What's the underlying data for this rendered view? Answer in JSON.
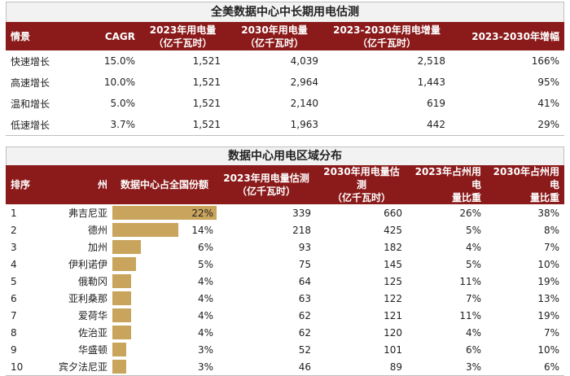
{
  "table1": {
    "title": "全美数据中心中长期用电估测",
    "headers": [
      "情景",
      "CAGR",
      "2023年用电量\n（亿千瓦时）",
      "2030年用电量\n（亿千瓦时）",
      "2023-2030年用电增量\n（亿千瓦时）",
      "2023-2030年增幅"
    ],
    "rows": [
      [
        "快速增长",
        "15.0%",
        "1,521",
        "4,039",
        "2,518",
        "166%"
      ],
      [
        "高速增长",
        "10.0%",
        "1,521",
        "2,964",
        "1,443",
        "95%"
      ],
      [
        "温和增长",
        "5.0%",
        "1,521",
        "2,140",
        "619",
        "41%"
      ],
      [
        "低速增长",
        "3.7%",
        "1,521",
        "1,963",
        "442",
        "29%"
      ]
    ]
  },
  "table2": {
    "title": "数据中心用电区域分布",
    "headers": [
      "排序",
      "州",
      "数据中心占全国份额",
      "2023年用电量估测\n（亿千瓦时）",
      "2030年用电量估测\n（亿千瓦时）",
      "2023年占州用电\n量比重",
      "2030年占州用电\n量比重"
    ],
    "bar_color": "#c9a45c",
    "header_color": "#8b1a1a",
    "rows": [
      {
        "rank": "1",
        "state": "弗吉尼亚",
        "share": "22%",
        "share_value": 22,
        "e2023": "339",
        "e2030": "660",
        "p2023": "26%",
        "p2030": "38%"
      },
      {
        "rank": "2",
        "state": "德州",
        "share": "14%",
        "share_value": 14,
        "e2023": "218",
        "e2030": "425",
        "p2023": "5%",
        "p2030": "8%"
      },
      {
        "rank": "3",
        "state": "加州",
        "share": "6%",
        "share_value": 6,
        "e2023": "93",
        "e2030": "182",
        "p2023": "4%",
        "p2030": "7%"
      },
      {
        "rank": "4",
        "state": "伊利诺伊",
        "share": "5%",
        "share_value": 5,
        "e2023": "75",
        "e2030": "145",
        "p2023": "5%",
        "p2030": "10%"
      },
      {
        "rank": "5",
        "state": "俄勒冈",
        "share": "4%",
        "share_value": 4,
        "e2023": "64",
        "e2030": "125",
        "p2023": "11%",
        "p2030": "19%"
      },
      {
        "rank": "6",
        "state": "亚利桑那",
        "share": "4%",
        "share_value": 4,
        "e2023": "63",
        "e2030": "122",
        "p2023": "7%",
        "p2030": "13%"
      },
      {
        "rank": "7",
        "state": "爱荷华",
        "share": "4%",
        "share_value": 4,
        "e2023": "62",
        "e2030": "121",
        "p2023": "11%",
        "p2030": "19%"
      },
      {
        "rank": "8",
        "state": "佐治亚",
        "share": "4%",
        "share_value": 4,
        "e2023": "62",
        "e2030": "120",
        "p2023": "4%",
        "p2030": "7%"
      },
      {
        "rank": "9",
        "state": "华盛顿",
        "share": "3%",
        "share_value": 3,
        "e2023": "52",
        "e2030": "101",
        "p2023": "6%",
        "p2030": "10%"
      },
      {
        "rank": "10",
        "state": "宾夕法尼亚",
        "share": "3%",
        "share_value": 3,
        "e2023": "46",
        "e2030": "89",
        "p2023": "3%",
        "p2030": "6%"
      }
    ]
  }
}
